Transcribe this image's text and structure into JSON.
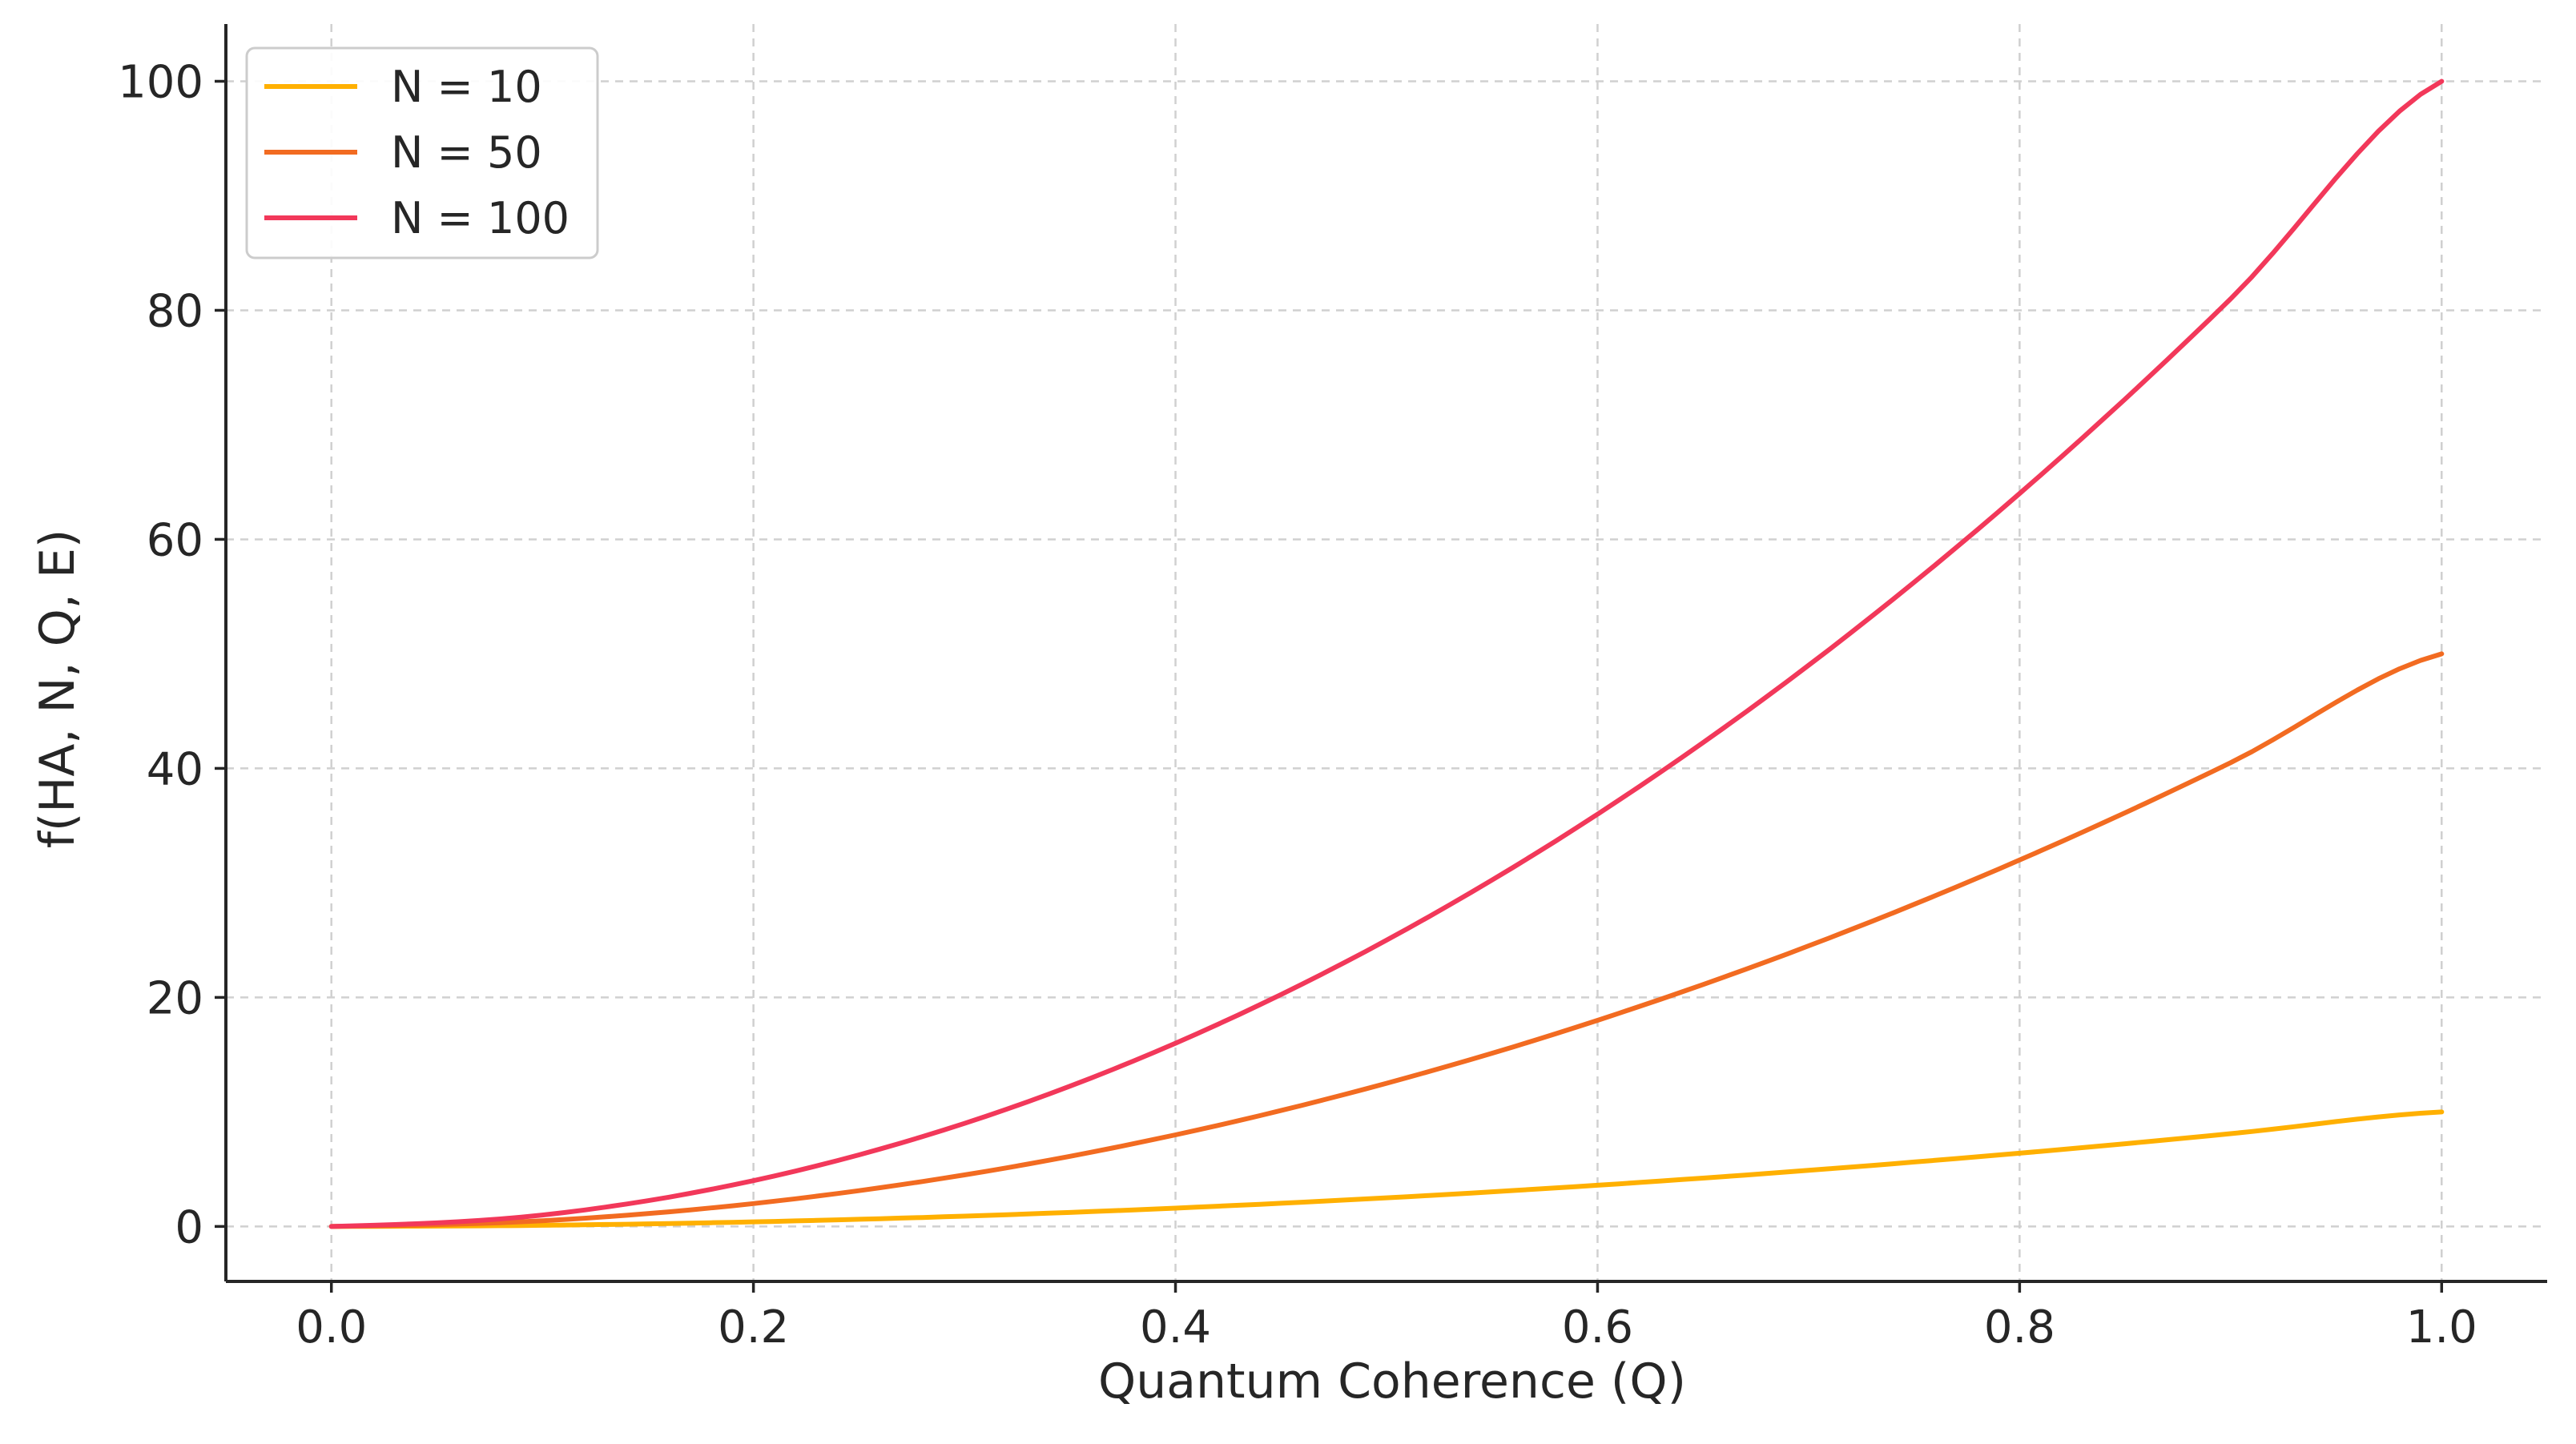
{
  "chart_data": {
    "type": "line",
    "title": "",
    "xlabel": "Quantum Coherence (Q)",
    "ylabel": "f(HA, N, Q, E)",
    "xlim": [
      -0.05,
      1.05
    ],
    "ylim": [
      -4.8,
      105
    ],
    "x_ticks": [
      0.0,
      0.2,
      0.4,
      0.6,
      0.8,
      1.0
    ],
    "x_tick_labels": [
      "0.0",
      "0.2",
      "0.4",
      "0.6",
      "0.8",
      "1.0"
    ],
    "y_ticks": [
      0,
      20,
      40,
      60,
      80,
      100
    ],
    "y_tick_labels": [
      "0",
      "20",
      "40",
      "60",
      "80",
      "100"
    ],
    "grid": true,
    "legend_position": "top-left",
    "x": [
      0.0,
      0.1,
      0.2,
      0.3,
      0.4,
      0.5,
      0.6,
      0.7,
      0.8,
      0.9,
      1.0
    ],
    "series": [
      {
        "name": "N = 10",
        "color": "#FFB000",
        "values": [
          0,
          0.1,
          0.4,
          0.9,
          1.6,
          2.5,
          3.6,
          4.9,
          6.4,
          8.1,
          10
        ]
      },
      {
        "name": "N = 50",
        "color": "#F26B21",
        "values": [
          0,
          0.5,
          2,
          4.5,
          8,
          12.5,
          18,
          24.5,
          32,
          40.5,
          50
        ]
      },
      {
        "name": "N = 100",
        "color": "#F2385A",
        "values": [
          0,
          1,
          4,
          9,
          16,
          25,
          36,
          49,
          64,
          81,
          100
        ]
      }
    ]
  }
}
